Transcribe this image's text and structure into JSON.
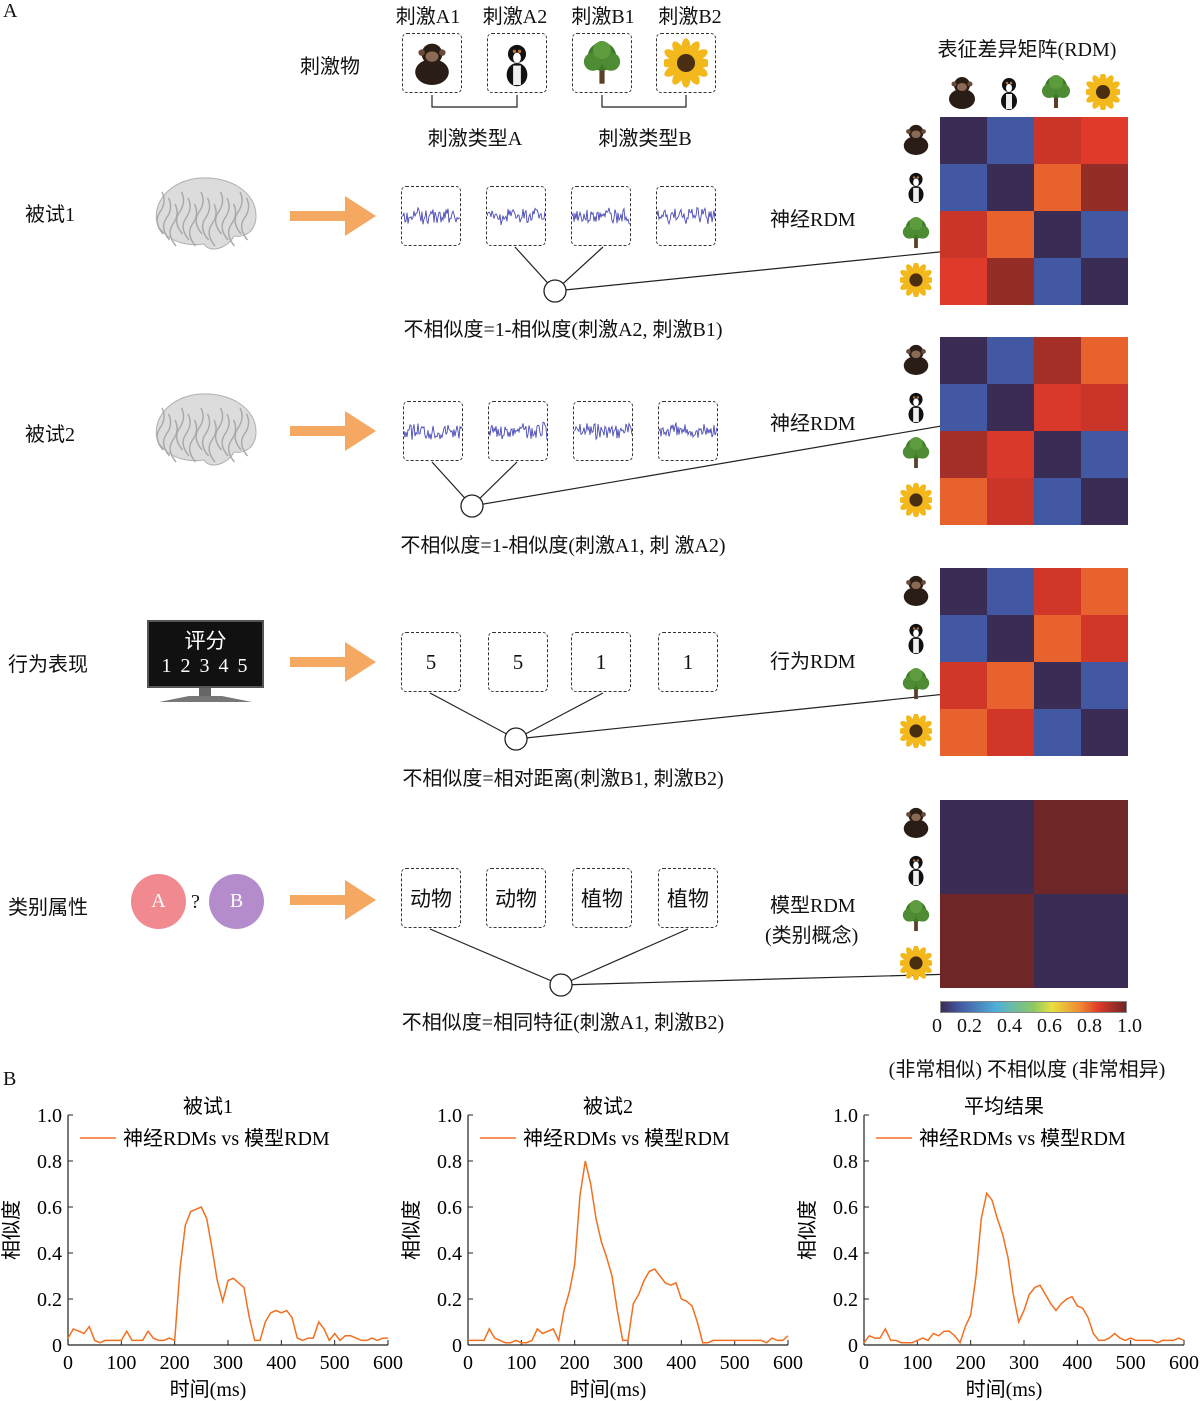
{
  "panel_a": {
    "label": "A",
    "stimuli_label": "刺激物",
    "stimuli": [
      {
        "label": "刺激A1",
        "icon": "chimpanzee-icon"
      },
      {
        "label": "刺激A2",
        "icon": "dog-icon"
      },
      {
        "label": "刺激B1",
        "icon": "tree-icon"
      },
      {
        "label": "刺激B2",
        "icon": "sunflower-icon"
      }
    ],
    "category_a": "刺激类型A",
    "category_b": "刺激类型B",
    "rdm_title": "表征差异矩阵(RDM)",
    "rows": [
      {
        "label": "被试1",
        "source": "brain",
        "rdm_label": "神经RDM",
        "formula": "不相似度=1-相似度(刺激A2, 刺激B1)",
        "matrix": [
          [
            0,
            0.1,
            0.88,
            0.85
          ],
          [
            0.1,
            0,
            0.8,
            0.95
          ],
          [
            0.88,
            0.8,
            0,
            0.1
          ],
          [
            0.85,
            0.95,
            0.1,
            0
          ]
        ]
      },
      {
        "label": "被试2",
        "source": "brain",
        "rdm_label": "神经RDM",
        "formula": "不相似度=1-相似度(刺激A1, 刺 激A2)",
        "matrix": [
          [
            0,
            0.1,
            0.93,
            0.8
          ],
          [
            0.1,
            0,
            0.86,
            0.88
          ],
          [
            0.93,
            0.86,
            0,
            0.1
          ],
          [
            0.8,
            0.88,
            0.1,
            0
          ]
        ]
      },
      {
        "label": "行为表现",
        "source": "monitor",
        "rdm_label": "行为RDM",
        "formula": "不相似度=相对距离(刺激B1, 刺激B2)",
        "box_values": [
          "5",
          "5",
          "1",
          "1"
        ],
        "monitor": {
          "title": "评分",
          "scale": "1 2 3 4 5"
        },
        "matrix": [
          [
            0,
            0.1,
            0.87,
            0.8
          ],
          [
            0.1,
            0,
            0.8,
            0.87
          ],
          [
            0.87,
            0.8,
            0,
            0.1
          ],
          [
            0.8,
            0.87,
            0.1,
            0
          ]
        ]
      },
      {
        "label": "类别属性",
        "source": "category",
        "rdm_label": "模型RDM",
        "rdm_label2": "(类别概念)",
        "formula": "不相似度=相同特征(刺激A1, 刺激B2)",
        "box_values": [
          "动物",
          "动物",
          "植物",
          "植物"
        ],
        "circle_a": "A",
        "question": "?",
        "circle_b": "B",
        "matrix": [
          [
            0,
            0,
            1,
            1
          ],
          [
            0,
            0,
            1,
            1
          ],
          [
            1,
            1,
            0,
            0
          ],
          [
            1,
            1,
            0,
            0
          ]
        ]
      }
    ],
    "colorbar": {
      "ticks": [
        "0",
        "0.2",
        "0.4",
        "0.6",
        "0.8",
        "1.0"
      ],
      "caption": "(非常相似) 不相似度 (非常相异)",
      "stops": [
        [
          0,
          "#3b2c56"
        ],
        [
          0.1,
          "#4258a2"
        ],
        [
          0.3,
          "#4fb0d8"
        ],
        [
          0.5,
          "#8cc864"
        ],
        [
          0.6,
          "#e8e040"
        ],
        [
          0.75,
          "#f08a30"
        ],
        [
          0.85,
          "#e03a2a"
        ],
        [
          1.0,
          "#6e2626"
        ]
      ]
    }
  },
  "panel_b": {
    "label": "B"
  },
  "chart_data": [
    {
      "type": "line",
      "title": "被试1",
      "xlabel": "时间(ms)",
      "ylabel": "相似度",
      "xlim": [
        0,
        600
      ],
      "ylim": [
        0,
        1.0
      ],
      "xticks": [
        "0",
        "100",
        "200",
        "300",
        "400",
        "500",
        "600"
      ],
      "yticks": [
        "0",
        "0.2",
        "0.4",
        "0.6",
        "0.8",
        "1.0"
      ],
      "legend": "神经RDMs vs 模型RDM",
      "legend_position": "top-left",
      "color": "#f07020",
      "x_step": 10,
      "values": [
        0.03,
        0.07,
        0.06,
        0.05,
        0.08,
        0.02,
        0.01,
        0.02,
        0.02,
        0.02,
        0.02,
        0.06,
        0.02,
        0.02,
        0.02,
        0.06,
        0.03,
        0.02,
        0.02,
        0.03,
        0.02,
        0.33,
        0.52,
        0.58,
        0.59,
        0.6,
        0.55,
        0.42,
        0.28,
        0.19,
        0.28,
        0.29,
        0.27,
        0.25,
        0.12,
        0.02,
        0.02,
        0.1,
        0.14,
        0.15,
        0.14,
        0.15,
        0.12,
        0.03,
        0.02,
        0.03,
        0.03,
        0.1,
        0.07,
        0.02,
        0.05,
        0.02,
        0.04,
        0.04,
        0.03,
        0.02,
        0.02,
        0.03,
        0.02,
        0.03,
        0.03
      ]
    },
    {
      "type": "line",
      "title": "被试2",
      "xlabel": "时间(ms)",
      "ylabel": "相似度",
      "xlim": [
        0,
        600
      ],
      "ylim": [
        0,
        1.0
      ],
      "xticks": [
        "0",
        "100",
        "200",
        "300",
        "400",
        "500",
        "600"
      ],
      "yticks": [
        "0",
        "0.2",
        "0.4",
        "0.6",
        "0.8",
        "1.0"
      ],
      "legend": "神经RDMs vs 模型RDM",
      "legend_position": "top-left",
      "color": "#f07020",
      "x_step": 10,
      "values": [
        0.02,
        0.02,
        0.02,
        0.02,
        0.07,
        0.03,
        0.02,
        0.01,
        0.01,
        0.02,
        0.01,
        0.01,
        0.02,
        0.07,
        0.05,
        0.06,
        0.07,
        0.02,
        0.15,
        0.23,
        0.35,
        0.65,
        0.8,
        0.7,
        0.55,
        0.45,
        0.38,
        0.3,
        0.15,
        0.02,
        0.02,
        0.18,
        0.22,
        0.28,
        0.32,
        0.33,
        0.3,
        0.27,
        0.26,
        0.27,
        0.2,
        0.19,
        0.17,
        0.1,
        0.01,
        0.01,
        0.02,
        0.02,
        0.02,
        0.02,
        0.02,
        0.02,
        0.02,
        0.02,
        0.02,
        0.02,
        0.01,
        0.03,
        0.02,
        0.02,
        0.04
      ]
    },
    {
      "type": "line",
      "title": "平均结果",
      "xlabel": "时间(ms)",
      "ylabel": "相似度",
      "xlim": [
        0,
        600
      ],
      "ylim": [
        0,
        1.0
      ],
      "xticks": [
        "0",
        "100",
        "200",
        "300",
        "400",
        "500",
        "600"
      ],
      "yticks": [
        "0",
        "0.2",
        "0.4",
        "0.6",
        "0.8",
        "1.0"
      ],
      "legend": "神经RDMs vs 模型RDM",
      "legend_position": "top-left",
      "color": "#f07020",
      "x_step": 10,
      "values": [
        0.01,
        0.04,
        0.03,
        0.03,
        0.07,
        0.02,
        0.02,
        0.01,
        0.01,
        0.01,
        0.02,
        0.03,
        0.02,
        0.05,
        0.04,
        0.06,
        0.06,
        0.04,
        0.01,
        0.08,
        0.13,
        0.3,
        0.55,
        0.66,
        0.63,
        0.55,
        0.48,
        0.38,
        0.22,
        0.1,
        0.15,
        0.22,
        0.25,
        0.26,
        0.22,
        0.18,
        0.15,
        0.18,
        0.2,
        0.21,
        0.17,
        0.16,
        0.12,
        0.05,
        0.02,
        0.02,
        0.03,
        0.05,
        0.03,
        0.02,
        0.03,
        0.02,
        0.02,
        0.02,
        0.02,
        0.01,
        0.02,
        0.02,
        0.02,
        0.03,
        0.02
      ]
    }
  ]
}
